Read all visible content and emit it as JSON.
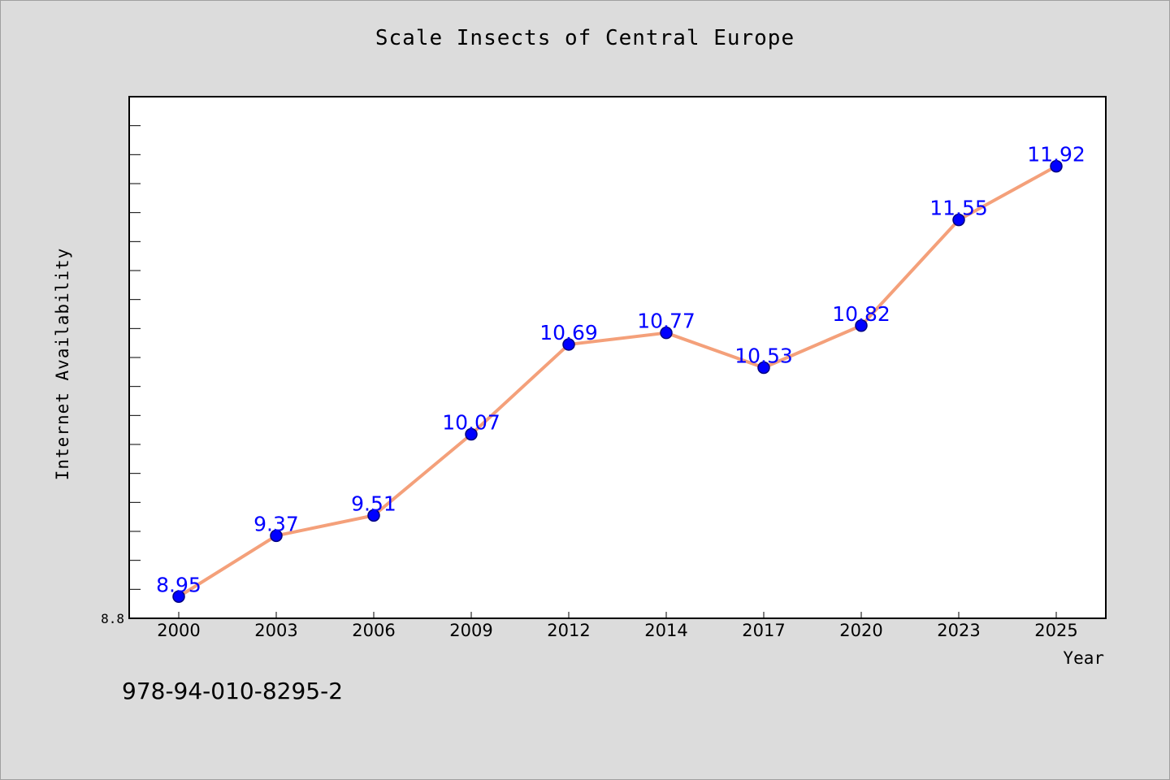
{
  "chart_data": {
    "type": "line",
    "title": "Scale Insects of Central Europe",
    "xlabel": "Year",
    "ylabel": "Internet Availability",
    "categories": [
      "2000",
      "2003",
      "2006",
      "2009",
      "2012",
      "2014",
      "2017",
      "2020",
      "2023",
      "2025"
    ],
    "series": [
      {
        "values": [
          8.95,
          9.37,
          9.51,
          10.07,
          10.69,
          10.77,
          10.53,
          10.82,
          11.55,
          11.92
        ]
      }
    ],
    "value_labels": [
      "8.95",
      "9.37",
      "9.51",
      "10.07",
      "10.69",
      "10.77",
      "10.53",
      "10.82",
      "11.55",
      "11.92"
    ],
    "ylim": [
      8.8,
      12.4
    ],
    "y_tick_label": "8.8",
    "y_minor_tick_step": 0.2,
    "grid": false,
    "colors": {
      "line": "#f4a07a",
      "marker": "#0000ff",
      "marker_edge": "#000080",
      "label": "#0000ff",
      "plot_bg": "#ffffff",
      "page_bg": "#dcdcdc"
    }
  },
  "footer": {
    "isbn": "978-94-010-8295-2"
  }
}
